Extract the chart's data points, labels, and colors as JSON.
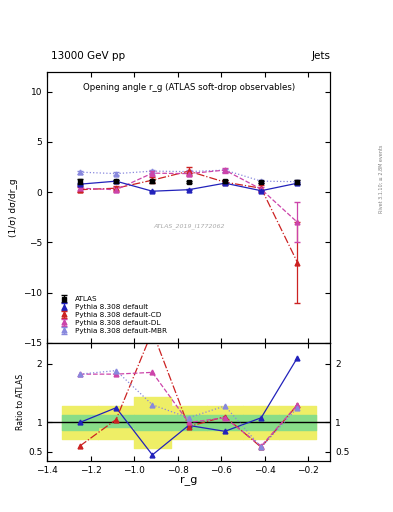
{
  "title_top": "13000 GeV pp",
  "title_right": "Jets",
  "plot_title": "Opening angle r_g (ATLAS soft-drop observables)",
  "xlabel": "r_g",
  "ylabel_main": "(1/σ) dσ/dr_g",
  "ylabel_ratio": "Ratio to ATLAS",
  "rivet_label": "Rivet 3.1.10; ≥ 2.8M events",
  "atlas_label": "ATLAS_2019_I1772062",
  "xvals": [
    -1.25,
    -1.0833,
    -0.9167,
    -0.75,
    -0.5833,
    -0.4167,
    -0.25
  ],
  "xlim": [
    -1.4,
    -0.1
  ],
  "atlas_y": [
    1.1,
    1.1,
    1.1,
    1.0,
    1.1,
    1.0,
    1.0
  ],
  "atlas_yerr": [
    0.25,
    0.15,
    0.15,
    0.12,
    0.15,
    0.12,
    0.2
  ],
  "pyth_y": [
    0.8,
    1.1,
    0.1,
    0.25,
    0.9,
    0.15,
    0.9
  ],
  "pyth_yerr": [
    0.1,
    0.1,
    0.05,
    0.05,
    0.1,
    0.05,
    0.1
  ],
  "CD_y": [
    0.25,
    0.4,
    1.2,
    2.1,
    1.0,
    0.4,
    -7.0
  ],
  "CD_yerr": [
    0.25,
    0.25,
    0.3,
    0.4,
    0.25,
    0.35,
    4.0
  ],
  "DL_y": [
    0.4,
    0.25,
    1.9,
    1.85,
    2.2,
    0.3,
    -3.0
  ],
  "DL_yerr": [
    0.25,
    0.25,
    0.25,
    0.25,
    0.25,
    0.25,
    2.0
  ],
  "MBR_y": [
    2.0,
    1.85,
    2.1,
    2.05,
    2.2,
    1.1,
    1.05
  ],
  "MBR_yerr": [
    0.15,
    0.15,
    0.15,
    0.15,
    0.15,
    0.15,
    0.15
  ],
  "ratio_default": [
    1.0,
    1.25,
    0.45,
    0.95,
    0.85,
    1.08,
    2.1
  ],
  "ratio_CD": [
    0.6,
    1.05,
    2.55,
    0.93,
    1.1,
    0.58,
    1.3
  ],
  "ratio_DL": [
    1.82,
    1.82,
    1.85,
    1.0,
    1.08,
    0.6,
    1.3
  ],
  "ratio_MBR": [
    1.82,
    1.88,
    1.3,
    1.08,
    1.28,
    0.58,
    1.25
  ],
  "bin_edges": [
    -1.333,
    -1.167,
    -1.0,
    -0.833,
    -0.667,
    -0.5,
    -0.333,
    -0.167
  ],
  "green_lo": [
    0.88,
    0.92,
    0.88,
    0.88,
    0.88,
    0.88,
    0.88
  ],
  "green_hi": [
    1.12,
    1.12,
    1.12,
    1.12,
    1.12,
    1.12,
    1.12
  ],
  "yellow_lo": [
    0.72,
    0.72,
    0.57,
    0.72,
    0.72,
    0.72,
    0.72
  ],
  "yellow_hi": [
    1.28,
    1.28,
    1.43,
    1.28,
    1.28,
    1.28,
    1.28
  ],
  "color_atlas": "#000000",
  "color_default": "#2222bb",
  "color_CD": "#cc2222",
  "color_DL": "#cc44aa",
  "color_MBR": "#8888dd",
  "ylim_main": [
    -15,
    12
  ],
  "ylim_ratio": [
    0.35,
    2.35
  ],
  "green_color": "#88dd88",
  "yellow_color": "#eeee66"
}
